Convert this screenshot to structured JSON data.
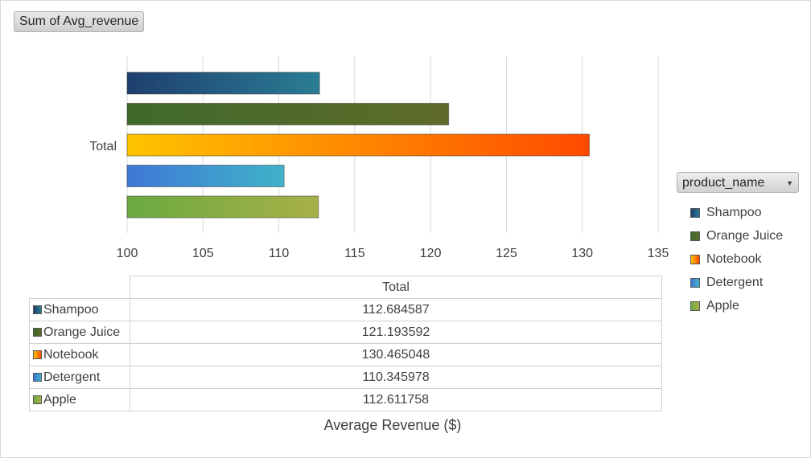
{
  "filter_button_label": "Sum of Avg_revenue",
  "legend_filter_label": "product_name",
  "chart_data": {
    "type": "bar",
    "orientation": "horizontal",
    "categories": [
      "Total"
    ],
    "series": [
      {
        "name": "Shampoo",
        "values": [
          112.684587
        ],
        "color_from": "#1f3f6e",
        "color_to": "#2a7d94"
      },
      {
        "name": "Orange Juice",
        "values": [
          121.193592
        ],
        "color_from": "#3f6a2a",
        "color_to": "#5f6b2a"
      },
      {
        "name": "Notebook",
        "values": [
          130.465048
        ],
        "color_from": "#ffc400",
        "color_to": "#ff4a00"
      },
      {
        "name": "Detergent",
        "values": [
          110.345978
        ],
        "color_from": "#3f78d6",
        "color_to": "#3fb3c8"
      },
      {
        "name": "Apple",
        "values": [
          112.611758
        ],
        "color_from": "#6aaa40",
        "color_to": "#a8b048"
      }
    ],
    "xlim": [
      100,
      135
    ],
    "x_ticks": [
      100,
      105,
      110,
      115,
      120,
      125,
      130,
      135
    ],
    "xlabel": "Average Revenue ($)",
    "grid": true,
    "legend_position": "right"
  },
  "table": {
    "header": "Total",
    "rows": [
      {
        "label": "Shampoo",
        "value": "112.684587"
      },
      {
        "label": "Orange Juice",
        "value": "121.193592"
      },
      {
        "label": "Notebook",
        "value": "130.465048"
      },
      {
        "label": "Detergent",
        "value": "110.345978"
      },
      {
        "label": "Apple",
        "value": "112.611758"
      }
    ]
  }
}
